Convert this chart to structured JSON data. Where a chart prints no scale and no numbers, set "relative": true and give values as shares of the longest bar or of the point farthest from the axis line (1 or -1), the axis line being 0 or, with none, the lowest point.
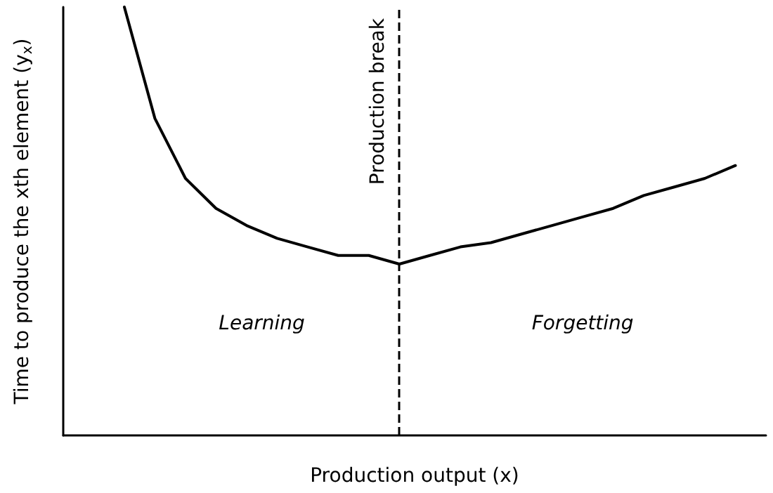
{
  "chart_data": {
    "type": "line",
    "relative": true,
    "xlabel": "Production output (x)",
    "ylabel": "Time to produce the xth element (y$_{x}$)",
    "marker": "none",
    "line_style": "solid",
    "categories": [
      null,
      null,
      null,
      null,
      null,
      null,
      null,
      null,
      null,
      null,
      null,
      null,
      null,
      null,
      null,
      null,
      null,
      null,
      null,
      null,
      null,
      null,
      null,
      null
    ],
    "series": [
      {
        "color": "#000000",
        "values": [
          null,
          null,
          1,
          0.74,
          0.6,
          0.53,
          0.49,
          0.46,
          0.44,
          0.42,
          0.42,
          0.4,
          0.42,
          0.44,
          0.45,
          0.47,
          0.49,
          0.51,
          0.53,
          0.56,
          0.58,
          0.6,
          0.63,
          null
        ]
      }
    ],
    "ref_lines": [
      {
        "axis": "x",
        "label": "Production break",
        "color": "#000000",
        "line_style": "dashed"
      }
    ],
    "annotations": [
      "Learning",
      "Forgetting"
    ]
  }
}
